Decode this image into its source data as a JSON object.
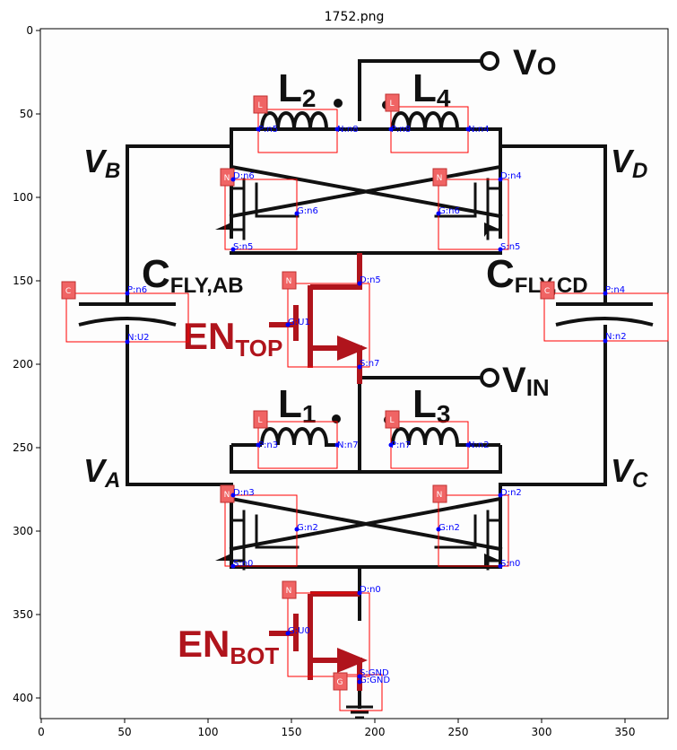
{
  "figure": {
    "title": "1752.png",
    "x_ticks": [
      "0",
      "50",
      "100",
      "150",
      "200",
      "250",
      "300",
      "350"
    ],
    "y_ticks": [
      "0",
      "50",
      "100",
      "150",
      "200",
      "250",
      "300",
      "350",
      "400"
    ]
  },
  "circuit": {
    "labels": {
      "vo": "V",
      "vo_sub": "O",
      "vin": "V",
      "vin_sub": "IN",
      "vb": "V",
      "vb_sub": "B",
      "vd": "V",
      "vd_sub": "D",
      "va": "V",
      "va_sub": "A",
      "vc": "V",
      "vc_sub": "C",
      "l2": "L",
      "l2_sub": "2",
      "l4": "L",
      "l4_sub": "4",
      "l1": "L",
      "l1_sub": "1",
      "l3": "L",
      "l3_sub": "3",
      "cfly_ab": "C",
      "cfly_ab_sub": "FLY,AB",
      "cfly_cd": "C",
      "cfly_cd_sub": "FLY,CD",
      "en_top": "EN",
      "en_top_sub": "TOP",
      "en_bot": "EN",
      "en_bot_sub": "BOT"
    }
  },
  "annotations": {
    "tags": [
      "L",
      "L",
      "N",
      "N",
      "C",
      "N",
      "C",
      "L",
      "L",
      "N",
      "N",
      "N",
      "G"
    ],
    "pins": {
      "l2_p": "P:n5",
      "l2_n": "N:n8",
      "l4_p": "P:n8",
      "l4_n": "N:n4",
      "mtl_d": "D:n6",
      "mtl_g": "G:n6",
      "mtl_s": "S:n5",
      "mtr_d": "D:n4",
      "mtr_g": "G:n6",
      "mtr_s": "S:n5",
      "cab_p": "P:n6",
      "cab_n": "N:U2",
      "ccd_p": "P:n4",
      "ccd_n": "N:n2",
      "entop_d": "D:n5",
      "entop_g": "G:U1",
      "entop_s": "S:n7",
      "l1_p": "P:n3",
      "l1_n": "N:n7",
      "l3_p": "P:n7",
      "l3_n": "N:n2",
      "mbl_d": "D:n3",
      "mbl_g": "G:n2",
      "mbl_s": "S:n0",
      "mbr_d": "D:n2",
      "mbr_g": "G:n2",
      "mbr_s": "S:n0",
      "enbot_d": "D:n0",
      "enbot_g": "G:U0",
      "enbot_s": "S:GND",
      "gnd": "G:GND"
    }
  },
  "colors": {
    "box": "#ff0000",
    "tag_fill": "#f06464",
    "pin_text": "#0000ff",
    "wire": "#111111",
    "enable": "#b0141c"
  }
}
